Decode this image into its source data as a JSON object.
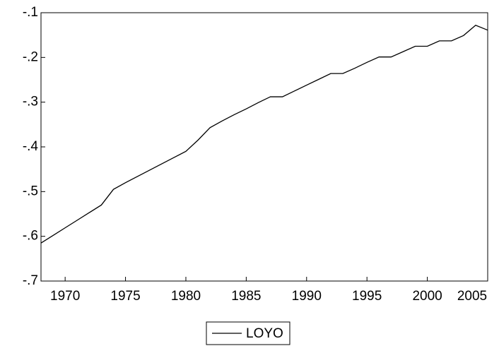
{
  "chart_data": {
    "type": "line",
    "x": [
      1968,
      1969,
      1970,
      1971,
      1972,
      1973,
      1974,
      1975,
      1976,
      1977,
      1978,
      1979,
      1980,
      1981,
      1982,
      1983,
      1984,
      1985,
      1986,
      1987,
      1988,
      1989,
      1990,
      1991,
      1992,
      1993,
      1994,
      1995,
      1996,
      1997,
      1998,
      1999,
      2000,
      2001,
      2002,
      2003,
      2004,
      2005
    ],
    "series": [
      {
        "name": "LOYO",
        "color": "#000000",
        "values": [
          -0.615,
          -0.598,
          -0.581,
          -0.564,
          -0.547,
          -0.53,
          -0.495,
          -0.48,
          -0.466,
          -0.452,
          -0.438,
          -0.424,
          -0.41,
          -0.385,
          -0.357,
          -0.342,
          -0.328,
          -0.315,
          -0.301,
          -0.288,
          -0.288,
          -0.275,
          -0.262,
          -0.249,
          -0.236,
          -0.236,
          -0.224,
          -0.211,
          -0.199,
          -0.199,
          -0.187,
          -0.175,
          -0.175,
          -0.163,
          -0.163,
          -0.151,
          -0.128,
          -0.139
        ]
      }
    ],
    "xlim": [
      1968,
      2005
    ],
    "xticks": [
      1970,
      1975,
      1980,
      1985,
      1990,
      1995,
      2000,
      2005
    ],
    "ylim": [
      -0.7,
      -0.1
    ],
    "yticks": [
      {
        "value": -0.1,
        "label": "-.1"
      },
      {
        "value": -0.2,
        "label": "-.2"
      },
      {
        "value": -0.3,
        "label": "-.3"
      },
      {
        "value": -0.4,
        "label": "-.4"
      },
      {
        "value": -0.5,
        "label": "-.5"
      },
      {
        "value": -0.6,
        "label": "-.6"
      },
      {
        "value": -0.7,
        "label": "-.7"
      }
    ],
    "legend": "bottom"
  }
}
